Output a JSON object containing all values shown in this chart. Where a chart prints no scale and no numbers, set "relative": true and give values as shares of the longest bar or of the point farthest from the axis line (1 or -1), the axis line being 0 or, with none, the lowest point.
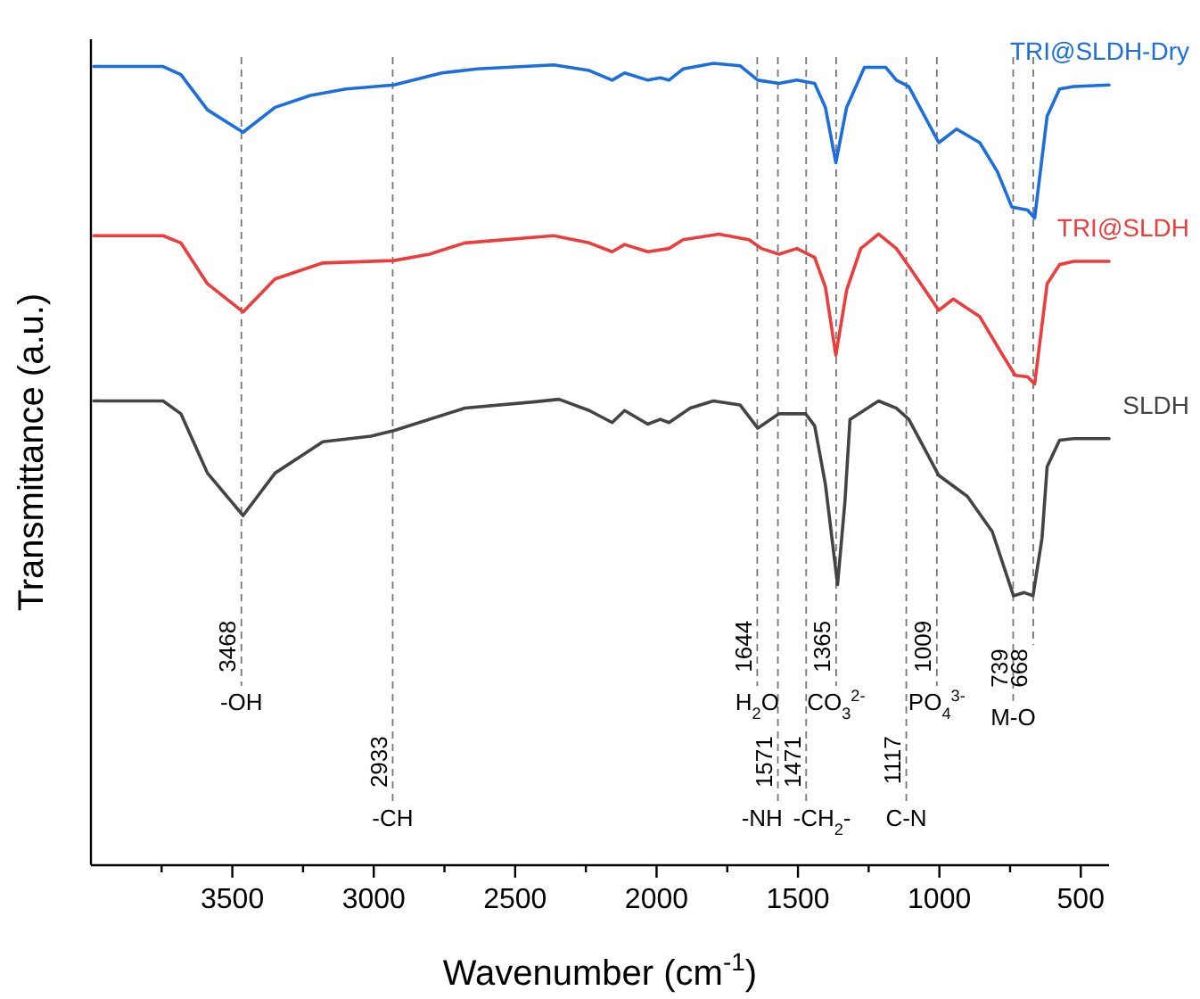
{
  "chart_data": {
    "type": "line",
    "xlabel": "Wavenumber (cm$^{-1}$)",
    "ylabel": "Transmittance (a.u.)",
    "relative": true,
    "xlim": [
      4000,
      400
    ],
    "xticks": [
      {
        "value": 3750,
        "label": null
      },
      3500,
      {
        "value": 3250,
        "label": null
      },
      3000,
      {
        "value": 2750,
        "label": null
      },
      2500,
      {
        "value": 2250,
        "label": null
      },
      2000,
      {
        "value": 1750,
        "label": null
      },
      1500,
      {
        "value": 1250,
        "label": null
      },
      1000,
      {
        "value": 750,
        "label": null
      },
      500
    ],
    "grid": false,
    "legend": false,
    "marker": "none",
    "line_style": "solid",
    "series": [
      {
        "name": "TRI@SLDH-Dry",
        "color": "#1a6ee0",
        "x": [
          3990,
          3745,
          3682,
          3588,
          3462,
          3349,
          3224,
          3098,
          2929,
          2759,
          2634,
          2364,
          2238,
          2157,
          2113,
          2031,
          1987,
          1956,
          1906,
          1799,
          1705,
          1642,
          1567,
          1504,
          1441,
          1403,
          1366,
          1328,
          1265,
          1190,
          1152,
          1108,
          1002,
          939,
          857,
          795,
          744,
          688,
          663,
          619,
          575,
          525,
          400
        ],
        "values": [
          0.996,
          0.996,
          0.986,
          0.942,
          0.914,
          0.945,
          0.96,
          0.968,
          0.973,
          0.988,
          0.993,
          0.998,
          0.991,
          0.979,
          0.988,
          0.979,
          0.982,
          0.979,
          0.993,
          1.0,
          0.997,
          0.979,
          0.975,
          0.979,
          0.975,
          0.945,
          0.876,
          0.945,
          0.995,
          0.995,
          0.979,
          0.971,
          0.901,
          0.918,
          0.901,
          0.865,
          0.821,
          0.817,
          0.807,
          0.934,
          0.968,
          0.971,
          0.973
        ]
      },
      {
        "name": "TRI@SLDH",
        "color": "#ee3b3b",
        "x": [
          3990,
          3745,
          3682,
          3588,
          3462,
          3349,
          3180,
          2929,
          2803,
          2678,
          2364,
          2238,
          2157,
          2113,
          2031,
          1956,
          1906,
          1780,
          1673,
          1629,
          1567,
          1504,
          1441,
          1403,
          1366,
          1328,
          1278,
          1215,
          1152,
          1108,
          1002,
          951,
          857,
          776,
          732,
          688,
          663,
          619,
          575,
          525,
          400
        ],
        "values": [
          0.785,
          0.785,
          0.776,
          0.725,
          0.69,
          0.731,
          0.751,
          0.754,
          0.762,
          0.776,
          0.785,
          0.776,
          0.765,
          0.774,
          0.765,
          0.769,
          0.78,
          0.787,
          0.78,
          0.769,
          0.762,
          0.769,
          0.758,
          0.721,
          0.636,
          0.717,
          0.769,
          0.787,
          0.769,
          0.747,
          0.692,
          0.706,
          0.684,
          0.636,
          0.611,
          0.609,
          0.6,
          0.725,
          0.749,
          0.753,
          0.753
        ]
      },
      {
        "name": "SLDH",
        "color": "#444444",
        "x": [
          3990,
          3745,
          3682,
          3588,
          3462,
          3349,
          3180,
          3010,
          2929,
          2678,
          2427,
          2345,
          2238,
          2157,
          2113,
          2031,
          1987,
          1956,
          1881,
          1799,
          1705,
          1642,
          1567,
          1473,
          1441,
          1403,
          1360,
          1334,
          1316,
          1215,
          1152,
          1108,
          1002,
          901,
          813,
          738,
          700,
          669,
          637,
          619,
          575,
          525,
          400
        ],
        "values": [
          0.579,
          0.579,
          0.563,
          0.489,
          0.436,
          0.489,
          0.528,
          0.535,
          0.542,
          0.57,
          0.578,
          0.581,
          0.567,
          0.552,
          0.567,
          0.55,
          0.556,
          0.552,
          0.57,
          0.579,
          0.574,
          0.545,
          0.563,
          0.563,
          0.548,
          0.475,
          0.35,
          0.453,
          0.556,
          0.579,
          0.57,
          0.556,
          0.486,
          0.46,
          0.416,
          0.336,
          0.34,
          0.336,
          0.408,
          0.497,
          0.53,
          0.532,
          0.532
        ]
      }
    ],
    "ref_lines": [
      {
        "axis": "x",
        "value": 3468,
        "line_style": "dashed",
        "color": "#777777",
        "label": "-OH"
      },
      {
        "axis": "x",
        "value": 2933,
        "line_style": "dashed",
        "color": "#777777",
        "label": "-CH"
      },
      {
        "axis": "x",
        "value": 1644,
        "line_style": "dashed",
        "color": "#777777",
        "label": "H$_{2}$O"
      },
      {
        "axis": "x",
        "value": 1571,
        "line_style": "dashed",
        "color": "#777777",
        "label": "-NH"
      },
      {
        "axis": "x",
        "value": 1471,
        "line_style": "dashed",
        "color": "#777777",
        "label": "-CH$_{2}$-"
      },
      {
        "axis": "x",
        "value": 1365,
        "line_style": "dashed",
        "color": "#777777",
        "label": "CO$_{3}$$^{2-}$"
      },
      {
        "axis": "x",
        "value": 1117,
        "line_style": "dashed",
        "color": "#777777",
        "label": "C-N"
      },
      {
        "axis": "x",
        "value": 1009,
        "line_style": "dashed",
        "color": "#777777",
        "label": "PO$_{4}$$^{3-}$"
      },
      {
        "axis": "x",
        "value": 739,
        "line_style": "dashed",
        "color": "#777777",
        "label": "M-O"
      },
      {
        "axis": "x",
        "value": 668,
        "line_style": "dashed",
        "color": "#777777"
      }
    ],
    "annotations": [
      {
        "text": "3468",
        "x": 3468,
        "y": 0.305
      },
      {
        "text": "2933",
        "x": 2933,
        "y": 0.161
      },
      {
        "text": "1644",
        "x": 1644,
        "y": 0.305
      },
      {
        "text": "1571",
        "x": 1571,
        "y": 0.161
      },
      {
        "text": "1471",
        "x": 1471,
        "y": 0.161
      },
      {
        "text": "1365",
        "x": 1365,
        "y": 0.305
      },
      {
        "text": "1117",
        "x": 1117,
        "y": 0.161
      },
      {
        "text": "1009",
        "x": 1009,
        "y": 0.305
      },
      {
        "text": "739",
        "x": 739,
        "y": 0.27
      },
      {
        "text": "668",
        "x": 668,
        "y": 0.27
      }
    ]
  }
}
